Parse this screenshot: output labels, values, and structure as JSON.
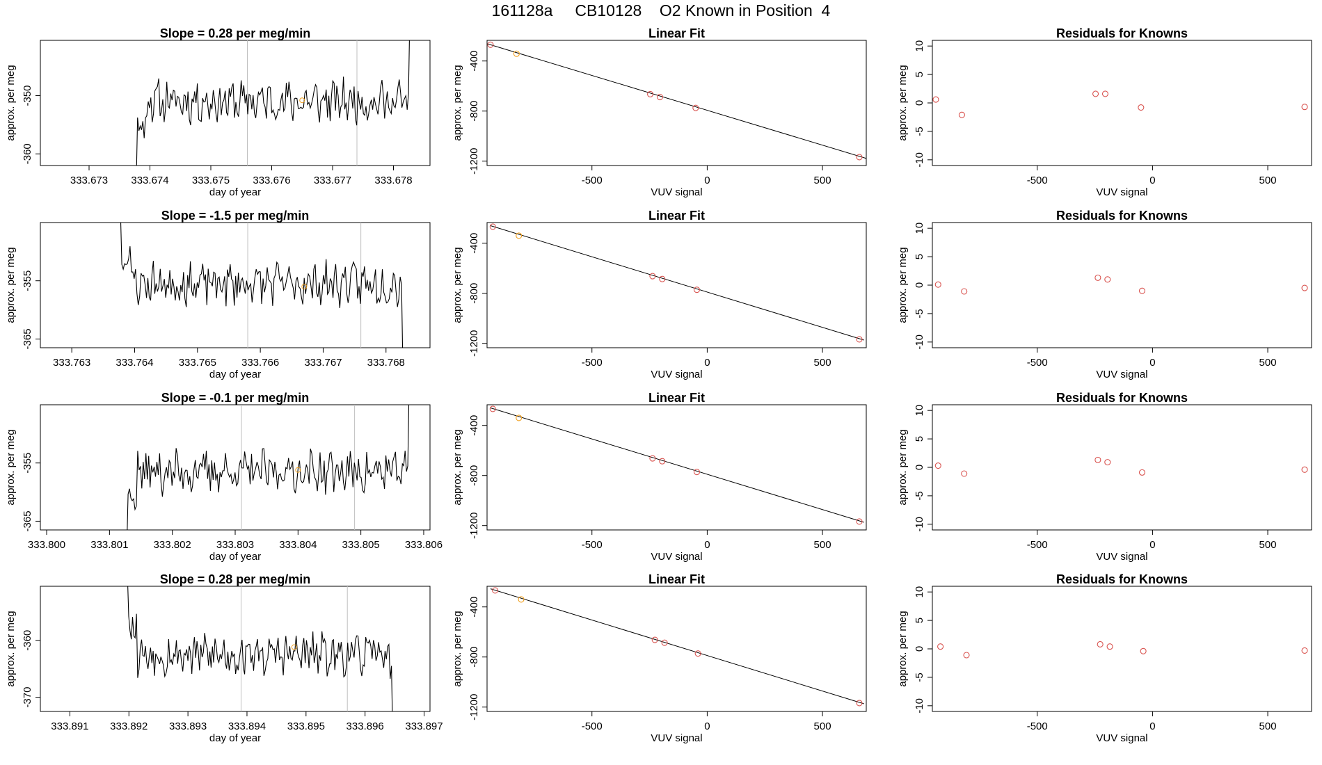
{
  "page": {
    "title": "161128a     CB10128    O2 Known in Position  4"
  },
  "colors": {
    "axis": "#000000",
    "trace": "#000000",
    "fit_line": "#000000",
    "marker_red": "#d9534f",
    "marker_orange": "#f0a020",
    "vline": "#bfbfbf"
  },
  "chart_data": [
    {
      "type": "line",
      "row": 1,
      "title": "Slope =  0.28  per meg/min",
      "xlabel": "day of year",
      "ylabel": "approx. per meg",
      "xlim": [
        333.6722,
        333.6786
      ],
      "ylim": [
        -362.0,
        -340.5
      ],
      "xticks": [
        333.673,
        333.674,
        333.675,
        333.676,
        333.677,
        333.678
      ],
      "xtick_labels": [
        "333.673",
        "333.674",
        "333.675",
        "333.676",
        "333.677",
        "333.678"
      ],
      "yticks": [
        -350,
        -360
      ],
      "ytick_labels": [
        "-350",
        "-360"
      ],
      "trace_start": 333.6736,
      "trace_end": 333.6784,
      "baseline": -351.0,
      "vlines": [
        333.6756,
        333.6774
      ],
      "highlight_point": {
        "x": 333.6765,
        "y": -350.8
      },
      "seed": 11
    },
    {
      "type": "scatter",
      "row": 1,
      "title": "Linear Fit",
      "xlabel": "VUV signal",
      "ylabel": "approx. per meg",
      "xlim": [
        -955,
        690
      ],
      "ylim": [
        -1235,
        -235
      ],
      "xticks": [
        -500,
        0,
        500
      ],
      "xtick_labels": [
        "-500",
        "0",
        "500"
      ],
      "yticks": [
        -400,
        -800,
        -1200
      ],
      "ytick_labels": [
        "-400",
        "-800",
        "-1200"
      ],
      "points": [
        {
          "x": -940,
          "y": -270,
          "color": "red"
        },
        {
          "x": -827,
          "y": -342,
          "color": "orange"
        },
        {
          "x": -247,
          "y": -665,
          "color": "red"
        },
        {
          "x": -205,
          "y": -688,
          "color": "red"
        },
        {
          "x": -50,
          "y": -775,
          "color": "red"
        },
        {
          "x": 660,
          "y": -1168,
          "color": "red"
        }
      ],
      "fit_line": {
        "x1": -955,
        "y1": -262,
        "x2": 690,
        "y2": -1178
      }
    },
    {
      "type": "scatter",
      "row": 1,
      "title": "Residuals for Knowns",
      "xlabel": "VUV signal",
      "ylabel": "approx. per meg",
      "xlim": [
        -955,
        690
      ],
      "ylim": [
        -11,
        11
      ],
      "xticks": [
        -500,
        0,
        500
      ],
      "xtick_labels": [
        "-500",
        "0",
        "500"
      ],
      "yticks": [
        10,
        5,
        0,
        -5,
        -10
      ],
      "ytick_labels": [
        "10",
        "5",
        "0",
        "-5",
        "-10"
      ],
      "points": [
        {
          "x": -940,
          "y": 0.6,
          "color": "red"
        },
        {
          "x": -827,
          "y": -2.1,
          "color": "red"
        },
        {
          "x": -247,
          "y": 1.6,
          "color": "red"
        },
        {
          "x": -205,
          "y": 1.6,
          "color": "red"
        },
        {
          "x": -50,
          "y": -0.8,
          "color": "red"
        },
        {
          "x": 660,
          "y": -0.7,
          "color": "red"
        }
      ]
    },
    {
      "type": "line",
      "row": 2,
      "title": "Slope =  -1.5  per meg/min",
      "xlabel": "day of year",
      "ylabel": "approx. per meg",
      "xlim": [
        333.7625,
        333.7687
      ],
      "ylim": [
        -366.5,
        -345.0
      ],
      "xticks": [
        333.763,
        333.764,
        333.765,
        333.766,
        333.767,
        333.768
      ],
      "xtick_labels": [
        "333.763",
        "333.764",
        "333.765",
        "333.766",
        "333.767",
        "333.768"
      ],
      "yticks": [
        -355,
        -365
      ],
      "ytick_labels": [
        "-355",
        "-365"
      ],
      "trace_start": 333.7636,
      "trace_end": 333.7684,
      "baseline": -355.5,
      "vlines": [
        333.7658,
        333.7676
      ],
      "highlight_point": {
        "x": 333.7667,
        "y": -356.0
      },
      "seed": 23
    },
    {
      "type": "scatter",
      "row": 2,
      "title": "Linear Fit",
      "xlabel": "VUV signal",
      "ylabel": "approx. per meg",
      "xlim": [
        -955,
        690
      ],
      "ylim": [
        -1235,
        -235
      ],
      "xticks": [
        -500,
        0,
        500
      ],
      "xtick_labels": [
        "-500",
        "0",
        "500"
      ],
      "yticks": [
        -400,
        -800,
        -1200
      ],
      "ytick_labels": [
        "-400",
        "-800",
        "-1200"
      ],
      "points": [
        {
          "x": -930,
          "y": -268,
          "color": "red"
        },
        {
          "x": -817,
          "y": -340,
          "color": "orange"
        },
        {
          "x": -237,
          "y": -663,
          "color": "red"
        },
        {
          "x": -195,
          "y": -686,
          "color": "red"
        },
        {
          "x": -45,
          "y": -772,
          "color": "red"
        },
        {
          "x": 660,
          "y": -1168,
          "color": "red"
        }
      ],
      "fit_line": {
        "x1": -940,
        "y1": -260,
        "x2": 680,
        "y2": -1174
      }
    },
    {
      "type": "scatter",
      "row": 2,
      "title": "Residuals for Knowns",
      "xlabel": "VUV signal",
      "ylabel": "approx. per meg",
      "xlim": [
        -955,
        690
      ],
      "ylim": [
        -11,
        11
      ],
      "xticks": [
        -500,
        0,
        500
      ],
      "xtick_labels": [
        "-500",
        "0",
        "500"
      ],
      "yticks": [
        10,
        5,
        0,
        -5,
        -10
      ],
      "ytick_labels": [
        "10",
        "5",
        "0",
        "-5",
        "-10"
      ],
      "points": [
        {
          "x": -930,
          "y": 0.1,
          "color": "red"
        },
        {
          "x": -817,
          "y": -1.1,
          "color": "red"
        },
        {
          "x": -237,
          "y": 1.3,
          "color": "red"
        },
        {
          "x": -195,
          "y": 1.0,
          "color": "red"
        },
        {
          "x": -45,
          "y": -1.0,
          "color": "red"
        },
        {
          "x": 660,
          "y": -0.5,
          "color": "red"
        }
      ]
    },
    {
      "type": "line",
      "row": 3,
      "title": "Slope =  -0.1  per meg/min",
      "xlabel": "day of year",
      "ylabel": "approx. per meg",
      "xlim": [
        333.7999,
        333.8061
      ],
      "ylim": [
        -366.5,
        -345.0
      ],
      "xticks": [
        333.8,
        333.801,
        333.802,
        333.803,
        333.804,
        333.805,
        333.806
      ],
      "xtick_labels": [
        "333.800",
        "333.801",
        "333.802",
        "333.803",
        "333.804",
        "333.805",
        "333.806"
      ],
      "yticks": [
        -355,
        -365
      ],
      "ytick_labels": [
        "-355",
        "-365"
      ],
      "trace_start": 333.8011,
      "trace_end": 333.8059,
      "baseline": -356.5,
      "vlines": [
        333.8031,
        333.8049
      ],
      "highlight_point": {
        "x": 333.804,
        "y": -356.2
      },
      "seed": 37
    },
    {
      "type": "scatter",
      "row": 3,
      "title": "Linear Fit",
      "xlabel": "VUV signal",
      "ylabel": "approx. per meg",
      "xlim": [
        -955,
        690
      ],
      "ylim": [
        -1235,
        -235
      ],
      "xticks": [
        -500,
        0,
        500
      ],
      "xtick_labels": [
        "-500",
        "0",
        "500"
      ],
      "yticks": [
        -400,
        -800,
        -1200
      ],
      "ytick_labels": [
        "-400",
        "-800",
        "-1200"
      ],
      "points": [
        {
          "x": -930,
          "y": -268,
          "color": "red"
        },
        {
          "x": -817,
          "y": -340,
          "color": "orange"
        },
        {
          "x": -237,
          "y": -663,
          "color": "red"
        },
        {
          "x": -195,
          "y": -686,
          "color": "red"
        },
        {
          "x": -45,
          "y": -772,
          "color": "red"
        },
        {
          "x": 660,
          "y": -1168,
          "color": "red"
        }
      ],
      "fit_line": {
        "x1": -940,
        "y1": -260,
        "x2": 680,
        "y2": -1174
      }
    },
    {
      "type": "scatter",
      "row": 3,
      "title": "Residuals for Knowns",
      "xlabel": "VUV signal",
      "ylabel": "approx. per meg",
      "xlim": [
        -955,
        690
      ],
      "ylim": [
        -11,
        11
      ],
      "xticks": [
        -500,
        0,
        500
      ],
      "xtick_labels": [
        "-500",
        "0",
        "500"
      ],
      "yticks": [
        10,
        5,
        0,
        -5,
        -10
      ],
      "ytick_labels": [
        "10",
        "5",
        "0",
        "-5",
        "-10"
      ],
      "points": [
        {
          "x": -930,
          "y": 0.3,
          "color": "red"
        },
        {
          "x": -817,
          "y": -1.1,
          "color": "red"
        },
        {
          "x": -237,
          "y": 1.3,
          "color": "red"
        },
        {
          "x": -195,
          "y": 0.9,
          "color": "red"
        },
        {
          "x": -45,
          "y": -0.9,
          "color": "red"
        },
        {
          "x": 660,
          "y": -0.4,
          "color": "red"
        }
      ]
    },
    {
      "type": "line",
      "row": 4,
      "title": "Slope =  0.28  per meg/min",
      "xlabel": "day of year",
      "ylabel": "approx. per meg",
      "xlim": [
        333.8905,
        333.8971
      ],
      "ylim": [
        -372.5,
        -350.5
      ],
      "xticks": [
        333.891,
        333.892,
        333.893,
        333.894,
        333.895,
        333.896,
        333.897
      ],
      "xtick_labels": [
        "333.891",
        "333.892",
        "333.893",
        "333.894",
        "333.895",
        "333.896",
        "333.897"
      ],
      "yticks": [
        -360,
        -370
      ],
      "ytick_labels": [
        "-360",
        "-370"
      ],
      "trace_start": 333.8918,
      "trace_end": 333.8966,
      "baseline": -362.5,
      "vlines": [
        333.8939,
        333.8957
      ],
      "highlight_point": {
        "x": 333.8948,
        "y": -361.2
      },
      "seed": 53
    },
    {
      "type": "scatter",
      "row": 4,
      "title": "Linear Fit",
      "xlabel": "VUV signal",
      "ylabel": "approx. per meg",
      "xlim": [
        -955,
        690
      ],
      "ylim": [
        -1235,
        -235
      ],
      "xticks": [
        -500,
        0,
        500
      ],
      "xtick_labels": [
        "-500",
        "0",
        "500"
      ],
      "yticks": [
        -400,
        -800,
        -1200
      ],
      "ytick_labels": [
        "-400",
        "-800",
        "-1200"
      ],
      "points": [
        {
          "x": -920,
          "y": -268,
          "color": "red"
        },
        {
          "x": -807,
          "y": -340,
          "color": "orange"
        },
        {
          "x": -227,
          "y": -663,
          "color": "red"
        },
        {
          "x": -185,
          "y": -686,
          "color": "red"
        },
        {
          "x": -40,
          "y": -772,
          "color": "red"
        },
        {
          "x": 660,
          "y": -1168,
          "color": "red"
        }
      ],
      "fit_line": {
        "x1": -940,
        "y1": -255,
        "x2": 680,
        "y2": -1174
      }
    },
    {
      "type": "scatter",
      "row": 4,
      "title": "Residuals for Knowns",
      "xlabel": "VUV signal",
      "ylabel": "approx. per meg",
      "xlim": [
        -955,
        690
      ],
      "ylim": [
        -11,
        11
      ],
      "xticks": [
        -500,
        0,
        500
      ],
      "xtick_labels": [
        "-500",
        "0",
        "500"
      ],
      "yticks": [
        10,
        5,
        0,
        -5,
        -10
      ],
      "ytick_labels": [
        "10",
        "5",
        "0",
        "-5",
        "-10"
      ],
      "points": [
        {
          "x": -920,
          "y": 0.4,
          "color": "red"
        },
        {
          "x": -807,
          "y": -1.1,
          "color": "red"
        },
        {
          "x": -227,
          "y": 0.8,
          "color": "red"
        },
        {
          "x": -185,
          "y": 0.4,
          "color": "red"
        },
        {
          "x": -40,
          "y": -0.4,
          "color": "red"
        },
        {
          "x": 660,
          "y": -0.3,
          "color": "red"
        }
      ]
    }
  ]
}
